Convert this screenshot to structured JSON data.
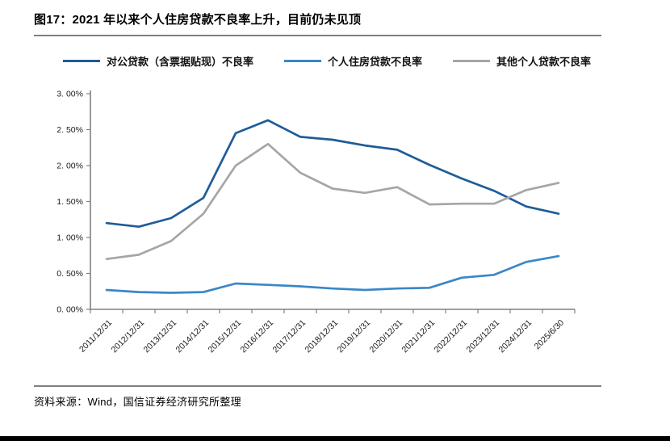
{
  "figure": {
    "title": "图17：2021 年以来个人住房贷款不良率上升，目前仍未见顶",
    "source": "资料来源：Wind，国信证券经济研究所整理"
  },
  "colors": {
    "series1": "#1f5c99",
    "series2": "#3a87c8",
    "series3": "#a6a6a6",
    "axis": "#808080",
    "tick_text": "#1a1a1a"
  },
  "chart_data": {
    "type": "line",
    "categories": [
      "2011/12/31",
      "2012/12/31",
      "2013/12/31",
      "2014/12/31",
      "2015/12/31",
      "2016/12/31",
      "2017/12/31",
      "2018/12/31",
      "2019/12/31",
      "2020/12/31",
      "2021/12/31",
      "2022/12/31",
      "2023/12/31",
      "2024/12/31",
      "2025/6/30"
    ],
    "series": [
      {
        "name": "对公贷款（含票据贴现）不良率",
        "color_key": "series1",
        "values": [
          1.2,
          1.15,
          1.27,
          1.55,
          2.45,
          2.63,
          2.4,
          2.36,
          2.28,
          2.22,
          2.01,
          1.82,
          1.65,
          1.43,
          1.33
        ]
      },
      {
        "name": "个人住房贷款不良率",
        "color_key": "series2",
        "values": [
          0.27,
          0.24,
          0.23,
          0.24,
          0.36,
          0.34,
          0.32,
          0.29,
          0.27,
          0.29,
          0.3,
          0.44,
          0.48,
          0.66,
          0.74
        ]
      },
      {
        "name": "其他个人贷款不良率",
        "color_key": "series3",
        "values": [
          0.7,
          0.76,
          0.95,
          1.33,
          2.0,
          2.3,
          1.9,
          1.68,
          1.62,
          1.7,
          1.46,
          1.47,
          1.47,
          1.66,
          1.76
        ]
      }
    ],
    "ylim": [
      0,
      3.0
    ],
    "ytick_step": 0.5,
    "ytick_labels": [
      "0. 00%",
      "0. 50%",
      "1. 00%",
      "1. 50%",
      "2. 00%",
      "2. 50%",
      "3. 00%"
    ],
    "grid": false,
    "legend_position": "top"
  }
}
